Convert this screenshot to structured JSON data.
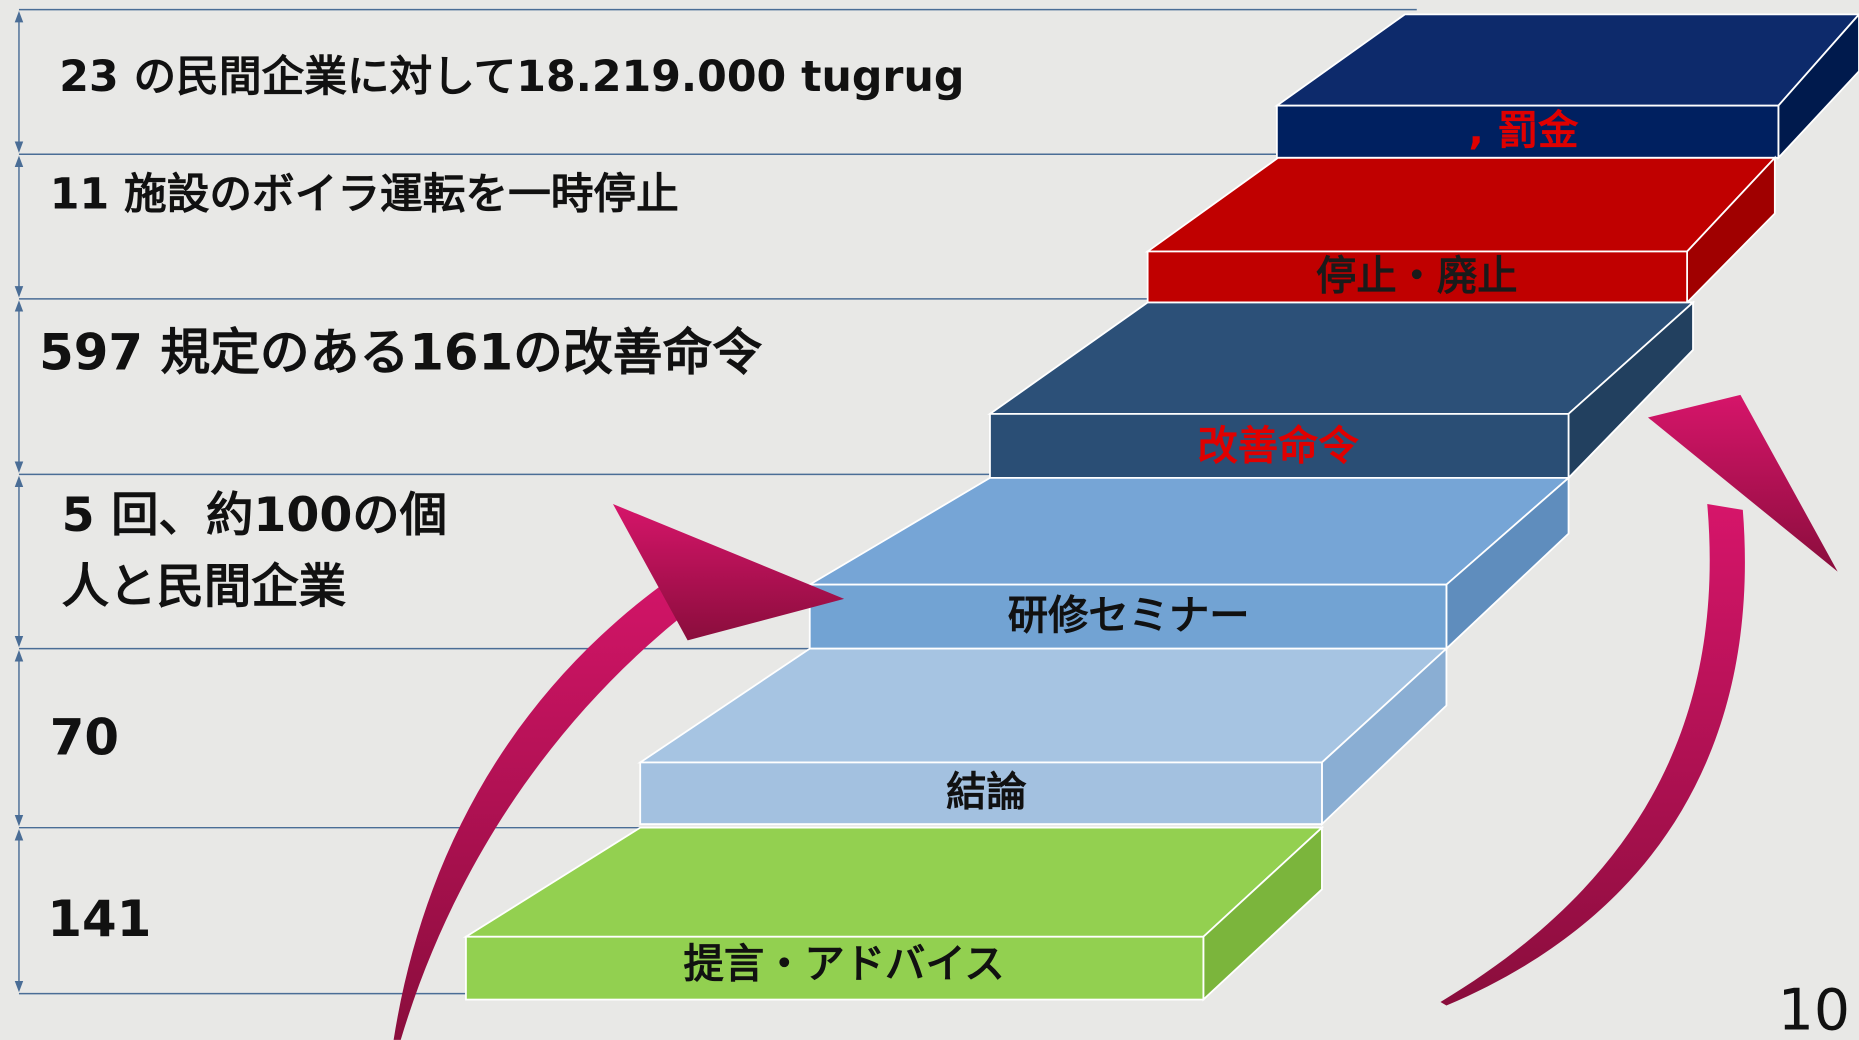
{
  "left_rows": [
    {
      "lines": [
        "23 の民間企業に対して18.219.000 tugrug"
      ]
    },
    {
      "lines": [
        "11 施設のボイラ運転を一時停止"
      ]
    },
    {
      "lines": [
        "597 規定のある161の改善命令"
      ]
    },
    {
      "lines": [
        "5 回、約100の個",
        "人と民間企業"
      ]
    },
    {
      "lines": [
        "70"
      ]
    },
    {
      "lines": [
        "141"
      ]
    }
  ],
  "steps": [
    {
      "label": "提言・アドバイス"
    },
    {
      "label": "結論"
    },
    {
      "label": "研修セミナー"
    },
    {
      "label": "改善命令"
    },
    {
      "label": "停止・廃止"
    },
    {
      "label": ", 罰金"
    }
  ],
  "page_number": "10"
}
